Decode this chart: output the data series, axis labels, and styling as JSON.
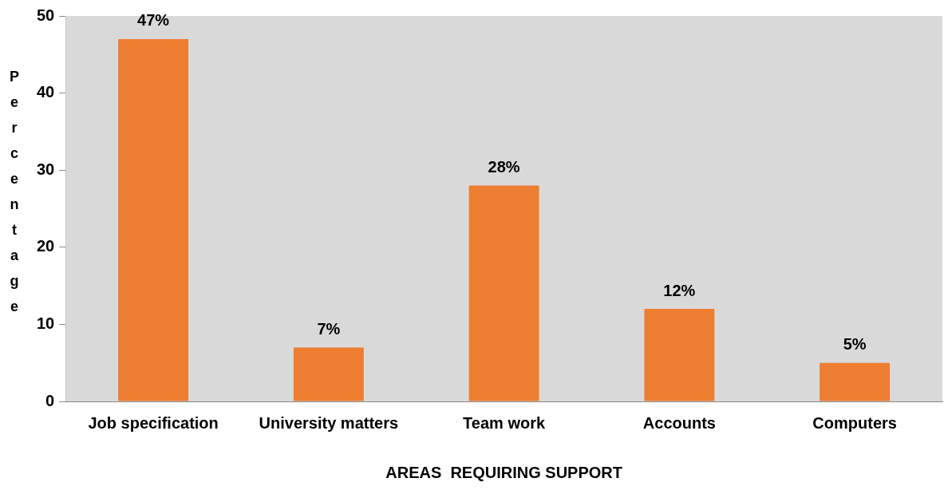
{
  "chart_data": {
    "type": "bar",
    "xlabel": "AREAS  REQUIRING SUPPORT",
    "ylabel": "Percentage",
    "categories": [
      "Job specification",
      "University matters",
      "Team work",
      "Accounts",
      "Computers"
    ],
    "values": [
      47,
      7,
      28,
      12,
      5
    ],
    "color": "#ed7d31",
    "value_labels": [
      "47%",
      "7%",
      "28%",
      "12%",
      "5%"
    ],
    "ylim": [
      0,
      50
    ],
    "yticks": [
      0,
      10,
      20,
      30,
      40,
      50
    ],
    "grid": false,
    "legend": false
  }
}
